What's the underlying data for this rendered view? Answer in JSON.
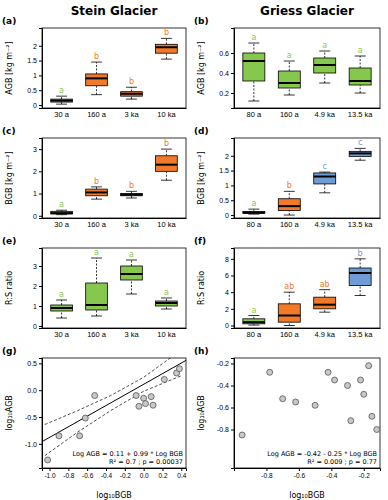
{
  "chart_data": [
    {
      "type": "box",
      "title": "Stein Glacier",
      "subtitle": "(a)",
      "y_label": "AGB [kg m⁻²]",
      "categories": [
        "30 a",
        "160 a",
        "3 ka",
        "10 ka"
      ],
      "boxes": [
        {
          "min": 0.03,
          "q1": 0.1,
          "median": 0.15,
          "q3": 0.2,
          "max": 0.3
        },
        {
          "min": 0.35,
          "q1": 0.65,
          "median": 0.9,
          "q3": 1.05,
          "max": 1.45
        },
        {
          "min": 0.2,
          "q1": 0.3,
          "median": 0.38,
          "q3": 0.45,
          "max": 0.6
        },
        {
          "min": 1.55,
          "q1": 1.75,
          "median": 1.95,
          "q3": 2.05,
          "max": 2.25
        }
      ],
      "colors": [
        "#86c84e",
        "#f07a2a",
        "#f07a2a",
        "#f07a2a"
      ],
      "letters": [
        "a",
        "b",
        "b",
        "b"
      ],
      "ylim": [
        -0.1,
        2.6
      ],
      "yticks": [
        0,
        0.5,
        1,
        1.5,
        2
      ]
    },
    {
      "type": "box",
      "title": "Griess Glacier",
      "subtitle": "(b)",
      "y_label": "AGB [kg m⁻²]",
      "categories": [
        "80 a",
        "160 a",
        "4.9 ka",
        "13.5 ka"
      ],
      "boxes": [
        {
          "min": 0.12,
          "q1": 0.32,
          "median": 0.52,
          "q3": 0.6,
          "max": 0.7
        },
        {
          "min": 0.18,
          "q1": 0.25,
          "median": 0.3,
          "q3": 0.42,
          "max": 0.52
        },
        {
          "min": 0.3,
          "q1": 0.4,
          "median": 0.48,
          "q3": 0.55,
          "max": 0.62
        },
        {
          "min": 0.2,
          "q1": 0.28,
          "median": 0.32,
          "q3": 0.45,
          "max": 0.57
        }
      ],
      "colors": [
        "#86c84e",
        "#86c84e",
        "#86c84e",
        "#86c84e"
      ],
      "letters": [
        "a",
        "a",
        "a",
        "a"
      ],
      "ylim": [
        0.05,
        0.85
      ],
      "yticks": [
        0.2,
        0.4,
        0.6
      ]
    },
    {
      "type": "box",
      "subtitle": "(c)",
      "y_label": "BGB [kg m⁻²]",
      "categories": [
        "30 a",
        "160 a",
        "3 ka",
        "10 ka"
      ],
      "boxes": [
        {
          "min": 0.05,
          "q1": 0.08,
          "median": 0.12,
          "q3": 0.2,
          "max": 0.25
        },
        {
          "min": 0.75,
          "q1": 0.9,
          "median": 1.05,
          "q3": 1.2,
          "max": 1.3
        },
        {
          "min": 0.8,
          "q1": 0.9,
          "median": 0.95,
          "q3": 1.0,
          "max": 1.1
        },
        {
          "min": 1.6,
          "q1": 2.0,
          "median": 2.3,
          "q3": 2.7,
          "max": 3.0
        }
      ],
      "colors": [
        "#86c84e",
        "#f07a2a",
        "#f07a2a",
        "#f07a2a"
      ],
      "letters": [
        "a",
        "b",
        "b",
        "b"
      ],
      "ylim": [
        -0.1,
        3.5
      ],
      "yticks": [
        0,
        1,
        2,
        3
      ]
    },
    {
      "type": "box",
      "subtitle": "(d)",
      "y_label": "BGB [kg m⁻²]",
      "categories": [
        "80 a",
        "160 a",
        "4.9 ka",
        "13.5 ka"
      ],
      "boxes": [
        {
          "min": 0.03,
          "q1": 0.06,
          "median": 0.08,
          "q3": 0.12,
          "max": 0.2
        },
        {
          "min": 0.0,
          "q1": 0.15,
          "median": 0.3,
          "q3": 0.55,
          "max": 0.8
        },
        {
          "min": 0.75,
          "q1": 1.05,
          "median": 1.3,
          "q3": 1.42,
          "max": 1.45
        },
        {
          "min": 1.85,
          "q1": 1.98,
          "median": 2.08,
          "q3": 2.15,
          "max": 2.25
        }
      ],
      "colors": [
        "#86c84e",
        "#f07a2a",
        "#6f9bd6",
        "#6f9bd6"
      ],
      "letters": [
        "a",
        "b",
        "c",
        "c"
      ],
      "ylim": [
        -0.1,
        2.6
      ],
      "yticks": [
        0,
        0.5,
        1,
        1.5,
        2
      ]
    },
    {
      "type": "box",
      "subtitle": "(e)",
      "y_label": "R:S ratio",
      "categories": [
        "30 a",
        "160 a",
        "3 ka",
        "10 ka"
      ],
      "boxes": [
        {
          "min": 0.4,
          "q1": 0.75,
          "median": 0.9,
          "q3": 1.05,
          "max": 1.3
        },
        {
          "min": 0.5,
          "q1": 0.8,
          "median": 1.05,
          "q3": 2.15,
          "max": 3.4
        },
        {
          "min": 1.6,
          "q1": 2.3,
          "median": 2.6,
          "q3": 3.0,
          "max": 3.3
        },
        {
          "min": 0.85,
          "q1": 1.0,
          "median": 1.15,
          "q3": 1.25,
          "max": 1.4
        }
      ],
      "colors": [
        "#86c84e",
        "#86c84e",
        "#86c84e",
        "#86c84e"
      ],
      "letters": [
        "a",
        "a",
        "a",
        "a"
      ],
      "ylim": [
        -0.1,
        3.9
      ],
      "yticks": [
        0,
        1,
        2,
        3
      ]
    },
    {
      "type": "box",
      "subtitle": "(f)",
      "y_label": "R:S ratio",
      "categories": [
        "80 a",
        "160 a",
        "4.9 ka",
        "13.5 ka"
      ],
      "boxes": [
        {
          "min": 0.05,
          "q1": 0.2,
          "median": 0.4,
          "q3": 0.8,
          "max": 1.2
        },
        {
          "min": 0.0,
          "q1": 0.4,
          "median": 1.2,
          "q3": 2.6,
          "max": 4.0
        },
        {
          "min": 1.6,
          "q1": 2.0,
          "median": 2.5,
          "q3": 3.4,
          "max": 4.3
        },
        {
          "min": 3.6,
          "q1": 4.8,
          "median": 6.3,
          "q3": 6.9,
          "max": 8.0
        }
      ],
      "colors": [
        "#86c84e",
        "#f07a2a",
        "#f07a2a",
        "#6f9bd6"
      ],
      "letters": [
        "a",
        "ab",
        "ab",
        "b"
      ],
      "ylim": [
        -0.3,
        9.3
      ],
      "yticks": [
        0,
        2,
        4,
        6,
        8
      ]
    },
    {
      "type": "scatter",
      "subtitle": "(g)",
      "x_label": "log₁₀BGB",
      "y_label": "log₁₀AGB",
      "x": [
        -1.02,
        -0.9,
        -0.68,
        -0.62,
        -0.52,
        -0.08,
        -0.05,
        0.0,
        0.02,
        0.08,
        0.1,
        0.22,
        0.35,
        0.38
      ],
      "values": [
        -1.3,
        -0.85,
        -0.85,
        -0.52,
        -0.1,
        -0.1,
        -0.3,
        -0.15,
        -0.25,
        -0.12,
        -0.28,
        0.2,
        0.32,
        0.4
      ],
      "fit": {
        "intercept": 0.11,
        "slope": 0.99
      },
      "band": {
        "x": [
          -1.05,
          -0.7,
          -0.35,
          0,
          0.4
        ],
        "lower": [
          -1.22,
          -0.78,
          -0.38,
          -0.02,
          0.27
        ],
        "upper": [
          -0.64,
          -0.38,
          -0.1,
          0.24,
          0.75
        ]
      },
      "annotations": [
        "Log AGB = 0.11 + 0.99 * Log BGB",
        "R² = 0.7 ; p = 0.00037"
      ],
      "xlim": [
        -1.08,
        0.45
      ],
      "xticks": [
        {
          "value": -1,
          "label": "-1.0"
        },
        -0.8,
        -0.6,
        -0.4,
        -0.2,
        {
          "value": 0,
          "label": "0.0"
        },
        0.2,
        0.4
      ],
      "ylim": [
        -1.45,
        0.6
      ],
      "yticks": [
        {
          "value": -1,
          "label": "-1.0"
        },
        -0.5,
        {
          "value": 0,
          "label": "0.0"
        },
        0.5
      ]
    },
    {
      "type": "scatter",
      "subtitle": "(h)",
      "x_label": "log₁₀BGB",
      "y_label": "log₁₀AGB",
      "x": [
        -0.95,
        -0.78,
        -0.7,
        -0.62,
        -0.5,
        -0.42,
        -0.38,
        -0.3,
        -0.28,
        -0.22,
        -0.2,
        -0.17,
        -0.15,
        -0.12
      ],
      "values": [
        -0.85,
        -0.28,
        -0.52,
        -0.55,
        -0.58,
        -0.28,
        -0.35,
        -0.4,
        -0.72,
        -0.35,
        -0.48,
        -0.22,
        -0.68,
        -0.8
      ],
      "annotations": [
        "Log AGB = -0.42 - 0.25 * Log BGB",
        "R² = 0.009 ; p = 0.77"
      ],
      "xlim": [
        -1.0,
        -0.1
      ],
      "xticks": [
        -0.8,
        -0.6,
        -0.4,
        -0.2
      ],
      "ylim": [
        -1.15,
        -0.15
      ],
      "yticks": [
        -0.8,
        -0.6,
        -0.4,
        -0.2
      ]
    }
  ]
}
